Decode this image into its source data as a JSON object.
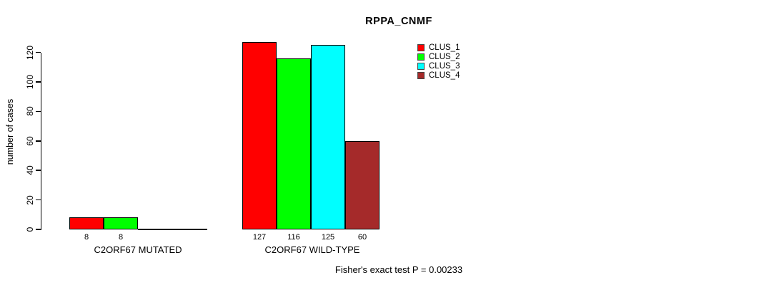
{
  "title": "RPPA_CNMF",
  "footer": "Fisher's exact test P = 0.00233",
  "chart_data": {
    "type": "bar",
    "title": "RPPA_CNMF",
    "xlabel": "",
    "ylabel": "number of cases",
    "ylim": [
      0,
      120
    ],
    "yticks": [
      0,
      20,
      40,
      60,
      80,
      100,
      120
    ],
    "grid": false,
    "legend_position": "right",
    "categories": [
      "C2ORF67 MUTATED",
      "C2ORF67 WILD-TYPE"
    ],
    "series": [
      {
        "name": "CLUS_1",
        "color": "#ff0000",
        "values": [
          8,
          127
        ]
      },
      {
        "name": "CLUS_2",
        "color": "#00ff00",
        "values": [
          8,
          116
        ]
      },
      {
        "name": "CLUS_3",
        "color": "#00ffff",
        "values": [
          0,
          125
        ]
      },
      {
        "name": "CLUS_4",
        "color": "#a52a2a",
        "values": [
          0,
          60
        ]
      }
    ],
    "bar_value_labels": {
      "C2ORF67 MUTATED": [
        "8",
        "8",
        "",
        ""
      ],
      "C2ORF67 WILD-TYPE": [
        "127",
        "116",
        "125",
        "60"
      ]
    },
    "annotation": "Fisher's exact test P = 0.00233"
  }
}
